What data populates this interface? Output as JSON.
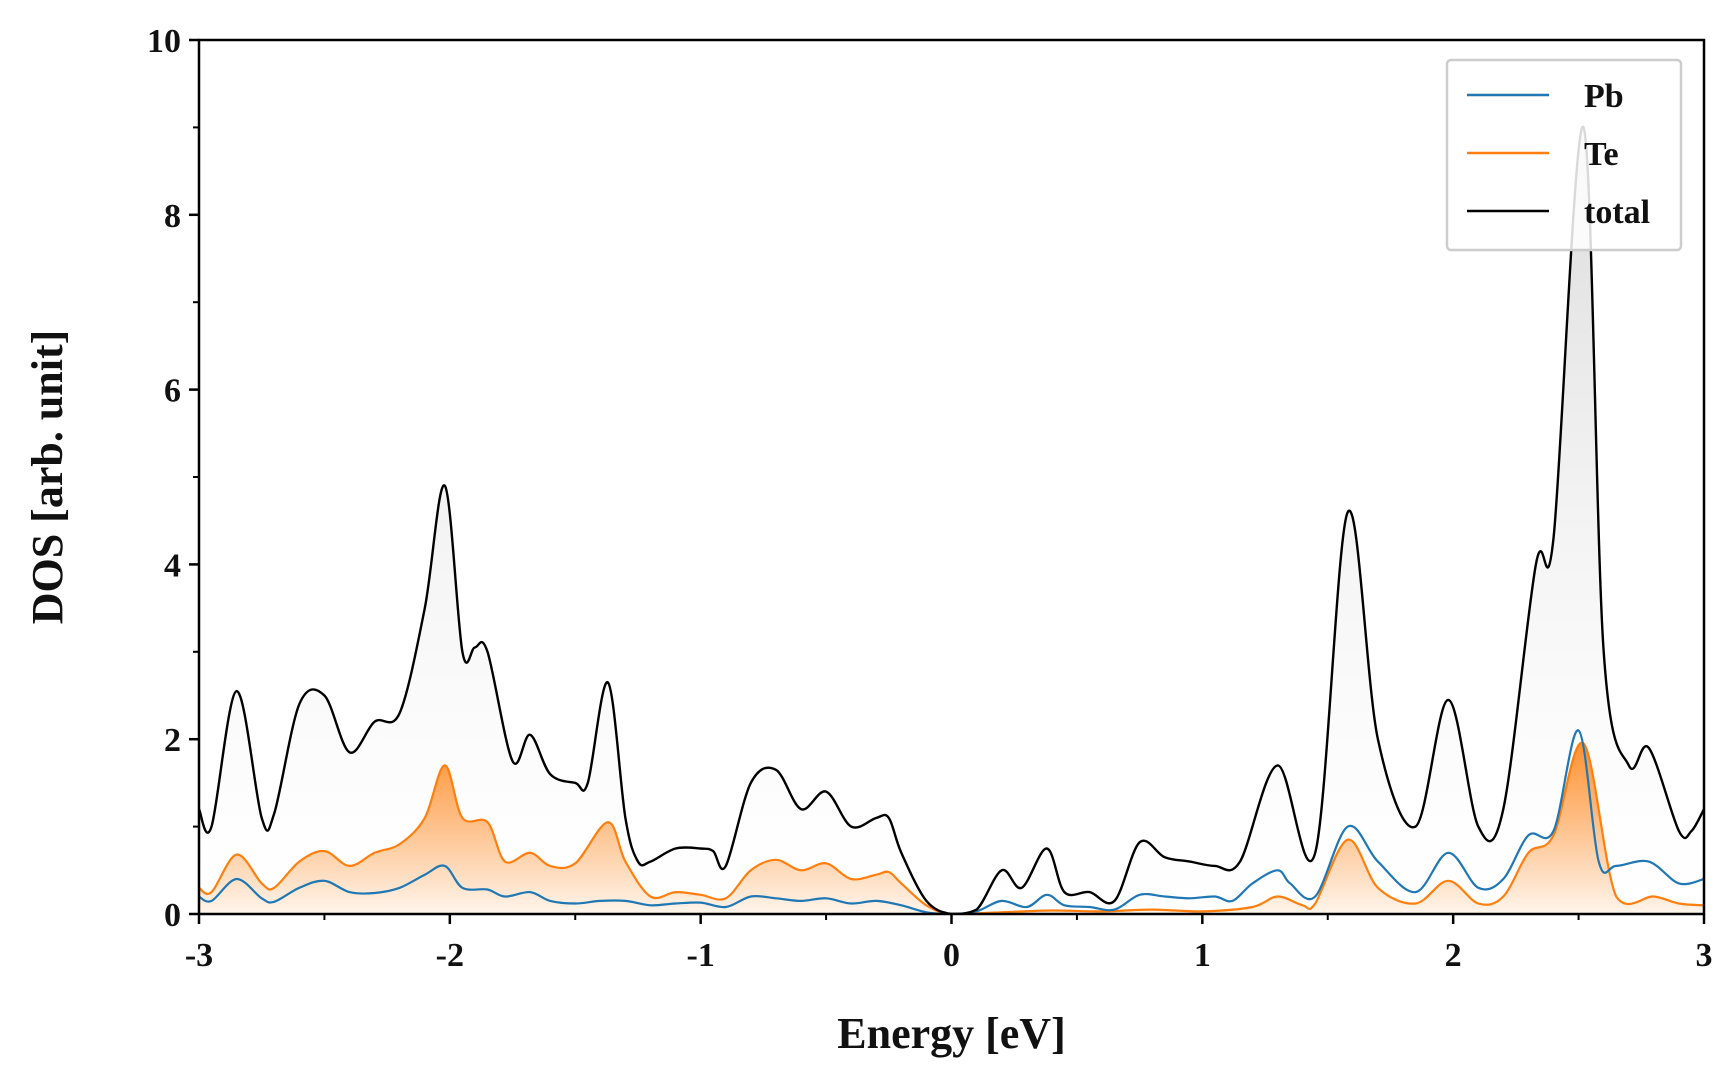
{
  "chart_data": {
    "type": "area",
    "title": "",
    "xlabel": "Energy [eV]",
    "ylabel": "DOS [arb. unit]",
    "xlim": [
      -3,
      3
    ],
    "ylim": [
      0,
      10
    ],
    "x_ticks": [
      -3,
      -2,
      -1,
      0,
      1,
      2,
      3
    ],
    "x_tick_labels": [
      "-3",
      "-2",
      "-1",
      "0",
      "1",
      "2",
      "3"
    ],
    "y_ticks": [
      0,
      2,
      4,
      6,
      8,
      10
    ],
    "y_tick_labels": [
      "0",
      "2",
      "4",
      "6",
      "8",
      "10"
    ],
    "grid": false,
    "legend_position": "top-right",
    "series": [
      {
        "name": "Pb",
        "color": "#1f77b4",
        "fill": false,
        "x": [
          -3.0,
          -2.95,
          -2.85,
          -2.75,
          -2.7,
          -2.6,
          -2.5,
          -2.4,
          -2.3,
          -2.2,
          -2.1,
          -2.02,
          -1.95,
          -1.85,
          -1.78,
          -1.68,
          -1.6,
          -1.5,
          -1.4,
          -1.3,
          -1.2,
          -1.1,
          -1.0,
          -0.9,
          -0.8,
          -0.7,
          -0.6,
          -0.5,
          -0.4,
          -0.3,
          -0.2,
          -0.1,
          0.0,
          0.1,
          0.2,
          0.3,
          0.38,
          0.45,
          0.55,
          0.65,
          0.75,
          0.85,
          0.95,
          1.05,
          1.12,
          1.2,
          1.3,
          1.35,
          1.45,
          1.58,
          1.7,
          1.85,
          1.98,
          2.1,
          2.2,
          2.3,
          2.4,
          2.5,
          2.58,
          2.65,
          2.78,
          2.9,
          3.0
        ],
        "y": [
          0.2,
          0.15,
          0.4,
          0.18,
          0.14,
          0.3,
          0.38,
          0.25,
          0.24,
          0.3,
          0.45,
          0.55,
          0.3,
          0.28,
          0.2,
          0.25,
          0.15,
          0.12,
          0.15,
          0.15,
          0.1,
          0.12,
          0.13,
          0.08,
          0.2,
          0.18,
          0.15,
          0.18,
          0.12,
          0.15,
          0.1,
          0.02,
          0.0,
          0.03,
          0.15,
          0.08,
          0.22,
          0.1,
          0.08,
          0.05,
          0.22,
          0.2,
          0.18,
          0.2,
          0.15,
          0.35,
          0.5,
          0.35,
          0.2,
          1.0,
          0.6,
          0.25,
          0.7,
          0.3,
          0.4,
          0.9,
          0.95,
          2.1,
          0.6,
          0.55,
          0.6,
          0.35,
          0.4
        ]
      },
      {
        "name": "Te",
        "color": "#ff7f0e",
        "fill": true,
        "x": [
          -3.0,
          -2.95,
          -2.85,
          -2.75,
          -2.7,
          -2.6,
          -2.5,
          -2.4,
          -2.3,
          -2.2,
          -2.1,
          -2.02,
          -1.95,
          -1.85,
          -1.78,
          -1.68,
          -1.6,
          -1.5,
          -1.37,
          -1.3,
          -1.2,
          -1.1,
          -1.0,
          -0.9,
          -0.8,
          -0.7,
          -0.6,
          -0.5,
          -0.4,
          -0.3,
          -0.25,
          -0.2,
          -0.1,
          0.0,
          0.2,
          0.4,
          0.6,
          0.8,
          1.0,
          1.2,
          1.3,
          1.4,
          1.45,
          1.58,
          1.7,
          1.85,
          1.98,
          2.1,
          2.2,
          2.3,
          2.4,
          2.52,
          2.65,
          2.8,
          2.9,
          3.0
        ],
        "y": [
          0.3,
          0.25,
          0.68,
          0.35,
          0.3,
          0.6,
          0.72,
          0.55,
          0.7,
          0.8,
          1.1,
          1.7,
          1.1,
          1.05,
          0.6,
          0.7,
          0.55,
          0.58,
          1.05,
          0.6,
          0.2,
          0.25,
          0.22,
          0.18,
          0.5,
          0.62,
          0.5,
          0.58,
          0.4,
          0.45,
          0.48,
          0.35,
          0.1,
          0.0,
          0.02,
          0.04,
          0.03,
          0.05,
          0.03,
          0.08,
          0.2,
          0.1,
          0.12,
          0.85,
          0.3,
          0.12,
          0.38,
          0.12,
          0.2,
          0.7,
          0.9,
          1.95,
          0.2,
          0.2,
          0.12,
          0.1
        ]
      },
      {
        "name": "total",
        "color": "#000000",
        "fill": true,
        "x": [
          -3.0,
          -2.95,
          -2.85,
          -2.75,
          -2.7,
          -2.6,
          -2.5,
          -2.4,
          -2.3,
          -2.2,
          -2.1,
          -2.02,
          -1.95,
          -1.9,
          -1.85,
          -1.75,
          -1.68,
          -1.6,
          -1.5,
          -1.45,
          -1.37,
          -1.3,
          -1.25,
          -1.2,
          -1.1,
          -1.0,
          -0.95,
          -0.9,
          -0.8,
          -0.7,
          -0.6,
          -0.5,
          -0.4,
          -0.3,
          -0.25,
          -0.2,
          -0.1,
          0.0,
          0.1,
          0.2,
          0.28,
          0.38,
          0.45,
          0.55,
          0.65,
          0.75,
          0.85,
          0.95,
          1.05,
          1.15,
          1.3,
          1.45,
          1.58,
          1.7,
          1.85,
          1.98,
          2.1,
          2.2,
          2.33,
          2.4,
          2.52,
          2.6,
          2.7,
          2.78,
          2.9,
          2.95,
          3.0
        ],
        "y": [
          1.2,
          1.0,
          2.55,
          1.1,
          1.15,
          2.4,
          2.5,
          1.85,
          2.2,
          2.3,
          3.5,
          4.9,
          3.0,
          3.05,
          3.0,
          1.75,
          2.05,
          1.6,
          1.5,
          1.5,
          2.65,
          1.1,
          0.6,
          0.6,
          0.75,
          0.75,
          0.72,
          0.55,
          1.5,
          1.65,
          1.2,
          1.4,
          1.0,
          1.1,
          1.1,
          0.7,
          0.15,
          0.0,
          0.05,
          0.5,
          0.3,
          0.75,
          0.25,
          0.25,
          0.15,
          0.82,
          0.65,
          0.6,
          0.55,
          0.6,
          1.7,
          0.7,
          4.6,
          2.0,
          1.0,
          2.45,
          1.0,
          1.2,
          4.0,
          4.3,
          9.0,
          3.0,
          1.7,
          1.9,
          0.95,
          0.95,
          1.2
        ]
      }
    ]
  }
}
